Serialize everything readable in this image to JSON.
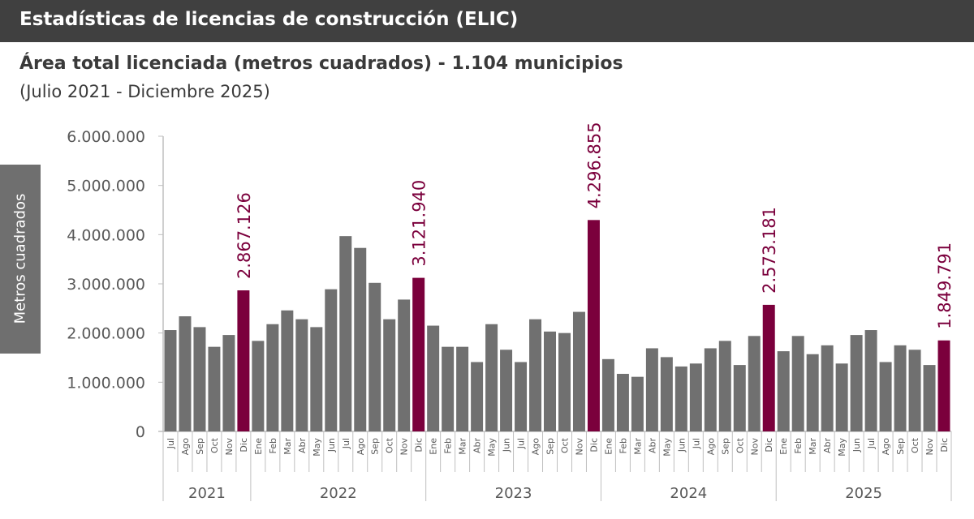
{
  "header": {
    "title": "Estadísticas de licencias de construcción (ELIC)"
  },
  "chart_data": {
    "type": "bar",
    "title": "Área total licenciada (metros cuadrados) - 1.104 municipios",
    "subtitle": "(Julio 2021 - Diciembre 2025)",
    "ylabel": "Metros cuadrados",
    "ylim": [
      0,
      6000000
    ],
    "yticks": [
      "0",
      "1.000.000",
      "2.000.000",
      "3.000.000",
      "4.000.000",
      "5.000.000",
      "6.000.000"
    ],
    "grid": false,
    "years": [
      {
        "label": "2021",
        "months": [
          "Jul",
          "Ago",
          "Sep",
          "Oct",
          "Nov",
          "Dic"
        ]
      },
      {
        "label": "2022",
        "months": [
          "Ene",
          "Feb",
          "Mar",
          "Abr",
          "May",
          "Jun",
          "Jul",
          "Ago",
          "Sep",
          "Oct",
          "Nov",
          "Dic"
        ]
      },
      {
        "label": "2023",
        "months": [
          "Ene",
          "Feb",
          "Mar",
          "Abr",
          "May",
          "Jun",
          "Jul",
          "Ago",
          "Sep",
          "Oct",
          "Nov",
          "Dic"
        ]
      },
      {
        "label": "2024",
        "months": [
          "Ene",
          "Feb",
          "Mar",
          "Abr",
          "May",
          "Jun",
          "Jul",
          "Ago",
          "Sep",
          "Oct",
          "Nov",
          "Dic"
        ]
      },
      {
        "label": "2025",
        "months": [
          "Ene",
          "Feb",
          "Mar",
          "Abr",
          "May",
          "Jun",
          "Jul",
          "Ago",
          "Sep",
          "Oct",
          "Nov",
          "Dic"
        ]
      }
    ],
    "values": [
      2060000,
      2340000,
      2120000,
      1720000,
      1960000,
      2867126,
      1840000,
      2180000,
      2460000,
      2280000,
      2120000,
      2890000,
      3970000,
      3730000,
      3020000,
      2280000,
      2680000,
      3121940,
      2150000,
      1720000,
      1720000,
      1410000,
      2180000,
      1660000,
      1410000,
      2280000,
      2030000,
      2000000,
      2430000,
      4296855,
      1470000,
      1170000,
      1110000,
      1690000,
      1510000,
      1320000,
      1380000,
      1690000,
      1840000,
      1350000,
      1940000,
      2573181,
      1630000,
      1940000,
      1570000,
      1750000,
      1380000,
      1960000,
      2060000,
      1410000,
      1750000,
      1660000,
      1350000,
      1849791
    ],
    "data_labels": {
      "5": "2.867.126",
      "17": "3.121.940",
      "29": "4.296.855",
      "41": "2.573.181",
      "53": "1.849.791"
    },
    "colors": {
      "bar": "#707070",
      "highlight": "#7b003c",
      "axis": "#bfbfbf",
      "text": "#595959"
    }
  }
}
